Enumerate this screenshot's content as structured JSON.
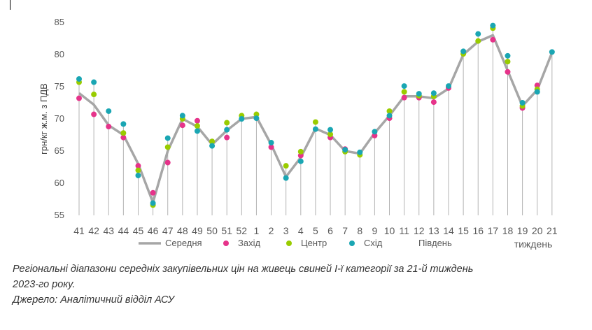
{
  "chart_data": {
    "type": "line",
    "ylabel": "грн/кг ж.м. з ПДВ",
    "xlabel": "тиждень",
    "ylim": [
      55,
      85
    ],
    "yticks": [
      55,
      60,
      65,
      70,
      75,
      80,
      85
    ],
    "categories": [
      "41",
      "42",
      "43",
      "44",
      "45",
      "46",
      "47",
      "48",
      "49",
      "50",
      "51",
      "52",
      "1",
      "2",
      "3",
      "4",
      "5",
      "6",
      "7",
      "8",
      "9",
      "10",
      "11",
      "12",
      "13",
      "14",
      "15",
      "16",
      "17",
      "18",
      "19",
      "20",
      "21"
    ],
    "series": [
      {
        "name": "Середня",
        "kind": "line",
        "color": "#a6a6a6",
        "values": [
          74.0,
          72.2,
          69.0,
          67.5,
          63.0,
          57.0,
          65.0,
          70.0,
          68.8,
          66.0,
          68.2,
          70.0,
          70.3,
          66.0,
          61.0,
          64.0,
          68.5,
          67.5,
          65.0,
          64.6,
          67.8,
          70.5,
          73.5,
          73.5,
          73.2,
          74.7,
          80.0,
          82.0,
          83.0,
          77.5,
          72.0,
          74.5,
          80.3
        ]
      },
      {
        "name": "Захід",
        "kind": "marker",
        "color": "#e6338a",
        "values": [
          73.2,
          70.7,
          68.8,
          67.1,
          62.7,
          58.5,
          63.2,
          69.0,
          69.7,
          null,
          67.1,
          null,
          null,
          65.6,
          null,
          64.3,
          null,
          67.1,
          65.3,
          null,
          67.4,
          70.1,
          73.3,
          73.3,
          72.6,
          74.8,
          null,
          null,
          82.3,
          77.3,
          71.7,
          75.2,
          null
        ]
      },
      {
        "name": "Центр",
        "kind": "marker",
        "color": "#99cc00",
        "values": [
          75.7,
          73.8,
          null,
          67.8,
          62.0,
          56.6,
          65.6,
          70.0,
          68.9,
          66.5,
          69.4,
          70.5,
          70.7,
          null,
          62.7,
          64.9,
          69.5,
          67.6,
          64.9,
          64.4,
          null,
          71.2,
          74.2,
          73.6,
          73.5,
          null,
          80.1,
          82.1,
          84.1,
          78.9,
          72.0,
          74.6,
          null
        ]
      },
      {
        "name": "Схід",
        "kind": "marker",
        "color": "#1aa6b3",
        "values": [
          76.2,
          75.7,
          71.2,
          69.2,
          61.2,
          56.9,
          67.0,
          70.5,
          68.1,
          65.8,
          68.3,
          70.0,
          70.1,
          66.3,
          60.8,
          63.4,
          68.4,
          68.3,
          65.2,
          64.8,
          68.0,
          70.5,
          75.1,
          73.9,
          74.0,
          75.1,
          80.5,
          83.2,
          84.5,
          79.8,
          72.5,
          74.2,
          80.4
        ]
      }
    ],
    "legend": {
      "placement": "bottom",
      "extra_label": "Південь"
    },
    "grid": false
  },
  "caption": {
    "line1": "Регіональні діапазони середніх закупівельних цін на живець свиней І-ї категорії за 21-й тиждень",
    "line2": "2023-го року.",
    "line3": "Джерело: Аналітичний відділ АСУ"
  }
}
